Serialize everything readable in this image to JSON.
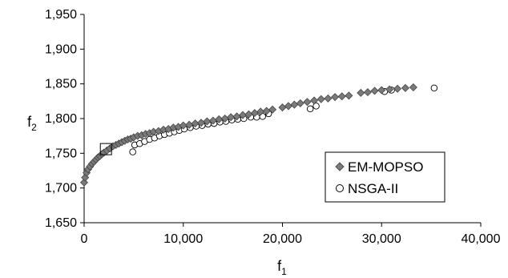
{
  "chart_data": {
    "type": "scatter",
    "title": "",
    "xlabel": "f",
    "xlabel_sub": "1",
    "ylabel": "f",
    "ylabel_sub": "2",
    "xlim": [
      0,
      40000
    ],
    "ylim": [
      1650,
      1950
    ],
    "x_ticks": [
      0,
      10000,
      20000,
      30000,
      40000
    ],
    "x_tick_labels": [
      "0",
      "10,000",
      "20,000",
      "30,000",
      "40,000"
    ],
    "y_ticks": [
      1650,
      1700,
      1750,
      1800,
      1850,
      1900,
      1950
    ],
    "y_tick_labels": [
      "1,650",
      "1,700",
      "1,750",
      "1,800",
      "1,850",
      "1,900",
      "1,950"
    ],
    "grid": false,
    "legend_position": "right",
    "highlight_box": {
      "x": 2200,
      "y": 1756
    },
    "series": [
      {
        "name": "EM-MOPSO",
        "marker": "diamond",
        "color": "#7a7a7a",
        "points": [
          [
            0,
            1708
          ],
          [
            100,
            1715
          ],
          [
            250,
            1722
          ],
          [
            400,
            1727
          ],
          [
            600,
            1731
          ],
          [
            800,
            1735
          ],
          [
            1000,
            1738
          ],
          [
            1200,
            1741
          ],
          [
            1400,
            1744
          ],
          [
            1600,
            1746
          ],
          [
            1800,
            1749
          ],
          [
            2000,
            1751
          ],
          [
            2300,
            1754
          ],
          [
            2600,
            1757
          ],
          [
            2900,
            1760
          ],
          [
            3200,
            1762
          ],
          [
            3500,
            1764
          ],
          [
            3800,
            1766
          ],
          [
            4100,
            1768
          ],
          [
            4400,
            1770
          ],
          [
            4700,
            1771
          ],
          [
            5000,
            1773
          ],
          [
            5400,
            1775
          ],
          [
            5800,
            1776
          ],
          [
            6200,
            1778
          ],
          [
            6600,
            1779
          ],
          [
            7000,
            1781
          ],
          [
            7500,
            1782
          ],
          [
            8000,
            1784
          ],
          [
            8500,
            1785
          ],
          [
            9000,
            1787
          ],
          [
            9500,
            1788
          ],
          [
            10000,
            1790
          ],
          [
            10600,
            1791
          ],
          [
            11200,
            1793
          ],
          [
            11800,
            1794
          ],
          [
            12400,
            1796
          ],
          [
            13000,
            1797
          ],
          [
            13600,
            1799
          ],
          [
            14200,
            1800
          ],
          [
            14800,
            1802
          ],
          [
            15400,
            1803
          ],
          [
            16000,
            1805
          ],
          [
            16600,
            1806
          ],
          [
            17200,
            1808
          ],
          [
            17800,
            1810
          ],
          [
            18400,
            1811
          ],
          [
            19000,
            1813
          ],
          [
            20000,
            1816
          ],
          [
            20600,
            1818
          ],
          [
            21200,
            1820
          ],
          [
            21800,
            1822
          ],
          [
            22500,
            1824
          ],
          [
            23200,
            1826
          ],
          [
            23900,
            1828
          ],
          [
            24600,
            1829
          ],
          [
            25300,
            1831
          ],
          [
            26000,
            1832
          ],
          [
            26700,
            1833
          ],
          [
            27900,
            1837
          ],
          [
            28600,
            1838
          ],
          [
            29300,
            1840
          ],
          [
            30000,
            1841
          ],
          [
            30800,
            1842
          ],
          [
            31600,
            1843
          ],
          [
            32400,
            1844
          ],
          [
            33200,
            1845
          ]
        ]
      },
      {
        "name": "NSGA-II",
        "marker": "circle",
        "color": "#ffffff",
        "points": [
          [
            4900,
            1752
          ],
          [
            5100,
            1762
          ],
          [
            5600,
            1764
          ],
          [
            6100,
            1767
          ],
          [
            6600,
            1770
          ],
          [
            7100,
            1772
          ],
          [
            7600,
            1775
          ],
          [
            8100,
            1777
          ],
          [
            8600,
            1779
          ],
          [
            9100,
            1781
          ],
          [
            9600,
            1783
          ],
          [
            10100,
            1785
          ],
          [
            10700,
            1787
          ],
          [
            11300,
            1789
          ],
          [
            11900,
            1790
          ],
          [
            12500,
            1792
          ],
          [
            13100,
            1793
          ],
          [
            13700,
            1795
          ],
          [
            14300,
            1796
          ],
          [
            14900,
            1798
          ],
          [
            15500,
            1799
          ],
          [
            16100,
            1800
          ],
          [
            16800,
            1802
          ],
          [
            17400,
            1802
          ],
          [
            18000,
            1803
          ],
          [
            18600,
            1807
          ],
          [
            22800,
            1814
          ],
          [
            23400,
            1818
          ],
          [
            30300,
            1839
          ],
          [
            31000,
            1841
          ],
          [
            35300,
            1844
          ]
        ]
      }
    ]
  }
}
